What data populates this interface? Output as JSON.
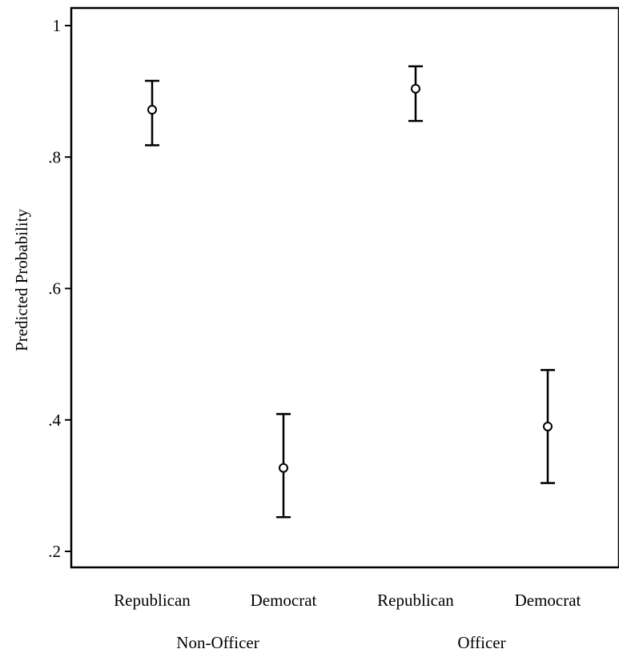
{
  "chart_data": {
    "type": "scatter",
    "subtype": "point-with-error-bars",
    "title": "",
    "xlabel": "",
    "ylabel": "Predicted Probability",
    "ylim": [
      0.2,
      1.0
    ],
    "yticks": [
      0.2,
      0.4,
      0.6,
      0.8,
      1.0
    ],
    "ytick_labels": [
      ".2",
      ".4",
      ".6",
      ".8",
      "1"
    ],
    "grid": false,
    "legend": "none",
    "categories": [
      "Republican",
      "Democrat",
      "Republican",
      "Democrat"
    ],
    "groups": [
      {
        "label": "Non-Officer",
        "categories": [
          0,
          1
        ]
      },
      {
        "label": "Officer",
        "categories": [
          2,
          3
        ]
      }
    ],
    "points": [
      {
        "group": "Non-Officer",
        "party": "Republican",
        "estimate": 0.872,
        "lower": 0.818,
        "upper": 0.916
      },
      {
        "group": "Non-Officer",
        "party": "Democrat",
        "estimate": 0.327,
        "lower": 0.252,
        "upper": 0.409
      },
      {
        "group": "Officer",
        "party": "Republican",
        "estimate": 0.904,
        "lower": 0.855,
        "upper": 0.938
      },
      {
        "group": "Officer",
        "party": "Democrat",
        "estimate": 0.39,
        "lower": 0.304,
        "upper": 0.476
      }
    ]
  }
}
